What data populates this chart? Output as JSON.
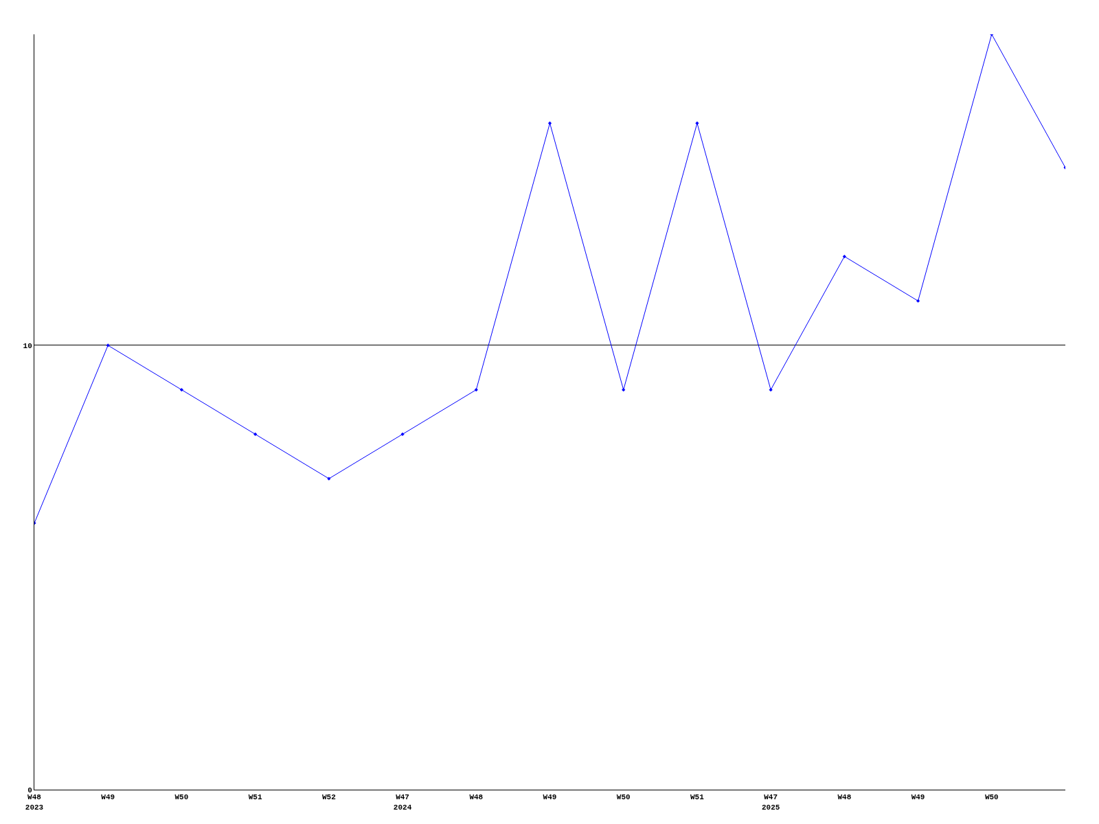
{
  "chart_data": {
    "type": "line",
    "categories": [
      "W48\n2023",
      "W49",
      "W50",
      "W51",
      "W52",
      "W47\n2024",
      "W48",
      "W49",
      "W50",
      "W51",
      "W47\n2025",
      "W48",
      "W49",
      "W50",
      null
    ],
    "series": [
      {
        "color": "#0000ff",
        "values": [
          6,
          10,
          9,
          8,
          7,
          8,
          9,
          15,
          9,
          15,
          9,
          12,
          11,
          17,
          14
        ]
      }
    ],
    "ylim": [
      0,
      17
    ],
    "yticks": [
      0,
      10
    ],
    "grid": "y",
    "legend": false,
    "marker": "diamond",
    "line_style": "solid"
  }
}
